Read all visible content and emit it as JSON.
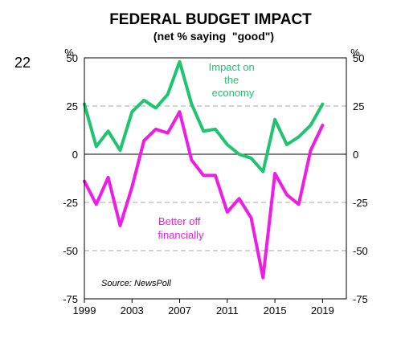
{
  "page_number": "22",
  "chart_data": {
    "type": "line",
    "title": "FEDERAL BUDGET IMPACT",
    "subtitle": "(net % saying  \"good\")",
    "unit_left": "%",
    "unit_right": "%",
    "source": "Source: NewsPoll",
    "ylim": [
      -75,
      50
    ],
    "xlim": [
      1999,
      2021
    ],
    "y_ticks": [
      50,
      25,
      0,
      -25,
      -50,
      -75
    ],
    "x_ticks": [
      1999,
      2003,
      2007,
      2011,
      2015,
      2019
    ],
    "grid": "horizontal dashed",
    "series": [
      {
        "name": "Impact on the economy",
        "label_lines": [
          "Impact on",
          "the",
          "economy"
        ],
        "color": "#1ec46e",
        "x": [
          1999,
          2000,
          2001,
          2002,
          2003,
          2004,
          2005,
          2006,
          2007,
          2008,
          2009,
          2010,
          2011,
          2012,
          2013,
          2014,
          2015,
          2016,
          2017,
          2018,
          2019
        ],
        "y": [
          26,
          4,
          12,
          2,
          22,
          28,
          24,
          31,
          48,
          26,
          12,
          13,
          5,
          0,
          -2,
          -9,
          18,
          5,
          9,
          15,
          26
        ]
      },
      {
        "name": "Better off financially",
        "label_lines": [
          "Better off",
          "financially"
        ],
        "color": "#ee1ce6",
        "x": [
          1999,
          2000,
          2001,
          2002,
          2003,
          2004,
          2005,
          2006,
          2007,
          2008,
          2009,
          2010,
          2011,
          2012,
          2013,
          2014,
          2015,
          2016,
          2017,
          2018,
          2019
        ],
        "y": [
          -14,
          -26,
          -12,
          -37,
          -17,
          7,
          13,
          11,
          22,
          -3,
          -11,
          -11,
          -30,
          -23,
          -33,
          -64,
          -10,
          -21,
          -26,
          2,
          15
        ]
      }
    ]
  }
}
